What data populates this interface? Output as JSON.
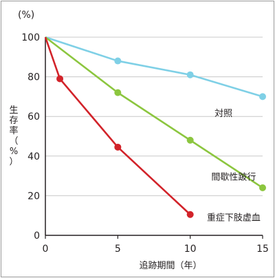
{
  "chart_data": {
    "type": "line",
    "title": "",
    "xlabel": "追跡期間（年）",
    "ylabel": "生存率（%）",
    "y_unit": "(%)",
    "xlim": [
      0,
      15
    ],
    "ylim": [
      0,
      100
    ],
    "x_ticks": [
      "0",
      "5",
      "10",
      "15"
    ],
    "y_ticks": [
      "0",
      "20",
      "40",
      "60",
      "80",
      "100"
    ],
    "grid": "horizontal",
    "series": [
      {
        "name": "対照",
        "color": "#7fd0e6",
        "points": [
          [
            0,
            100
          ],
          [
            5,
            88
          ],
          [
            10,
            81
          ],
          [
            15,
            70
          ]
        ]
      },
      {
        "name": "間歇性跛行",
        "color": "#8cc63f",
        "points": [
          [
            0,
            100
          ],
          [
            5,
            72
          ],
          [
            10,
            48
          ],
          [
            15,
            24
          ]
        ]
      },
      {
        "name": "重症下肢虚血",
        "color": "#d2232a",
        "points": [
          [
            0,
            100
          ],
          [
            1,
            79
          ],
          [
            5,
            44.5
          ],
          [
            10,
            10.5
          ]
        ]
      }
    ]
  }
}
